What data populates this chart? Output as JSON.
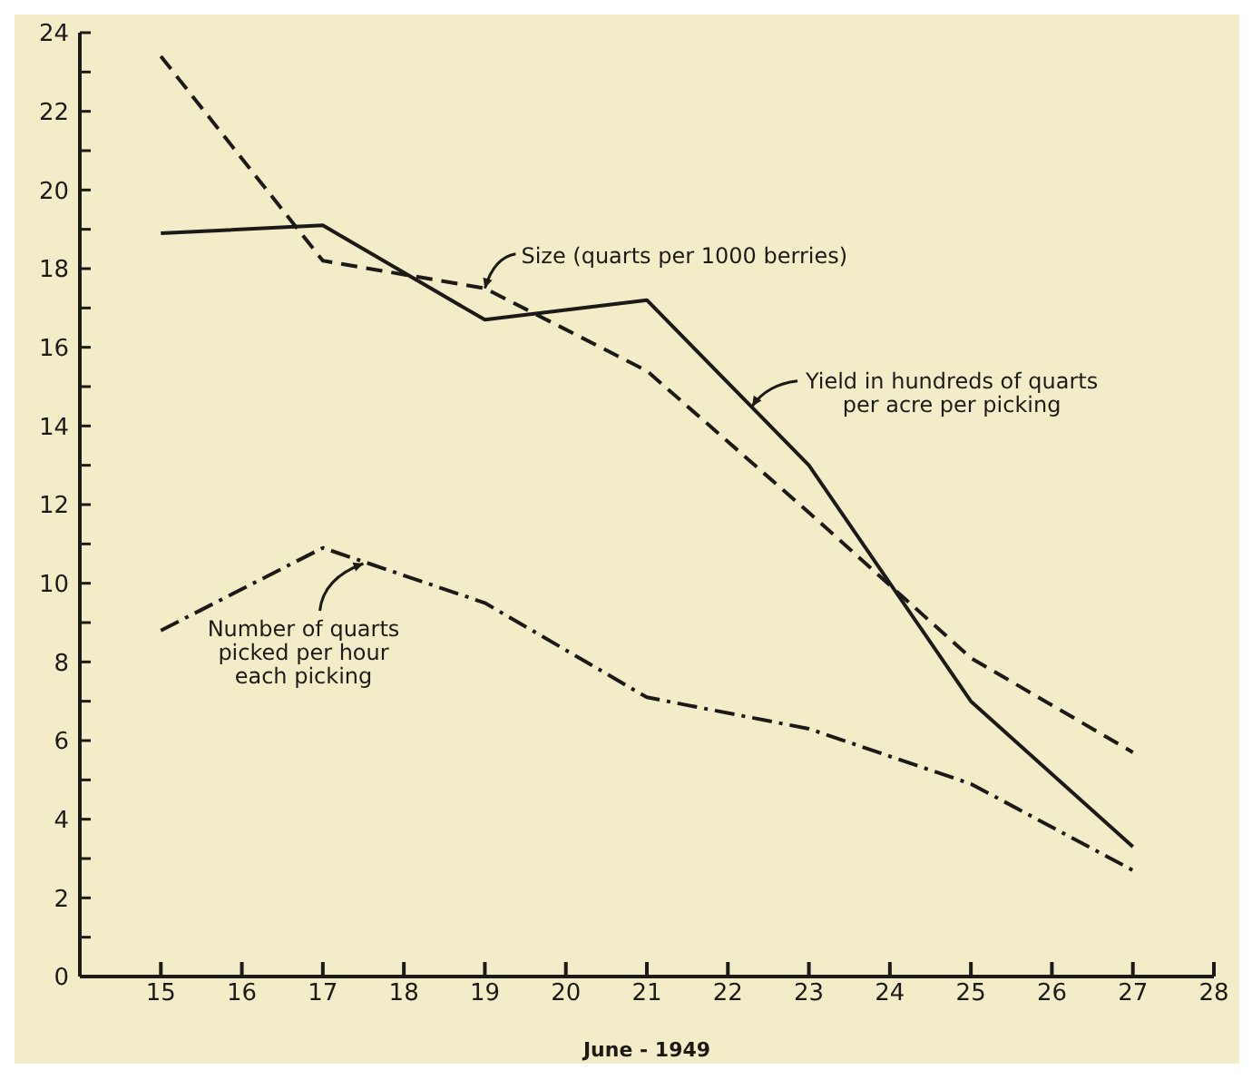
{
  "chart_data": {
    "type": "line",
    "xlabel": "June - 1949",
    "x": [
      15,
      17,
      19,
      21,
      23,
      25,
      27
    ],
    "series": [
      {
        "color": "#1c1a17",
        "line_style": "solid",
        "values": [
          18.9,
          19.1,
          16.7,
          17.2,
          13.0,
          7.0,
          3.3
        ]
      },
      {
        "color": "#1c1a17",
        "line_style": "dashed",
        "values": [
          23.4,
          18.2,
          17.5,
          15.4,
          11.8,
          8.1,
          5.7
        ]
      },
      {
        "color": "#1c1a17",
        "line_style": "dashdot",
        "values": [
          8.8,
          10.9,
          9.5,
          7.1,
          6.3,
          4.9,
          2.7
        ]
      }
    ],
    "annotations": [
      {
        "text": "Size (quarts per 1000 berries)",
        "x": 19,
        "y": 17.5
      },
      {
        "text": "Yield in hundreds of quarts per acre per picking",
        "x": 22.3,
        "y": 14.5
      },
      {
        "text": "Number of quarts picked per hour each picking",
        "x": 17.5,
        "y": 10.5
      }
    ],
    "xlim": [
      14,
      28
    ],
    "xticks": [
      15,
      16,
      17,
      18,
      19,
      20,
      21,
      22,
      23,
      24,
      25,
      26,
      27,
      28
    ],
    "ylim": [
      0,
      24
    ],
    "yticks": [
      0,
      {
        "value": 1,
        "label": null
      },
      2,
      {
        "value": 3,
        "label": null
      },
      4,
      {
        "value": 5,
        "label": null
      },
      6,
      {
        "value": 7,
        "label": null
      },
      8,
      {
        "value": 9,
        "label": null
      },
      10,
      {
        "value": 11,
        "label": null
      },
      12,
      {
        "value": 13,
        "label": null
      },
      14,
      {
        "value": 15,
        "label": null
      },
      16,
      {
        "value": 17,
        "label": null
      },
      18,
      {
        "value": 19,
        "label": null
      },
      20,
      {
        "value": 21,
        "label": null
      },
      22,
      {
        "value": 23,
        "label": null
      },
      24
    ],
    "marker": "none",
    "grid": false,
    "legend": false
  }
}
